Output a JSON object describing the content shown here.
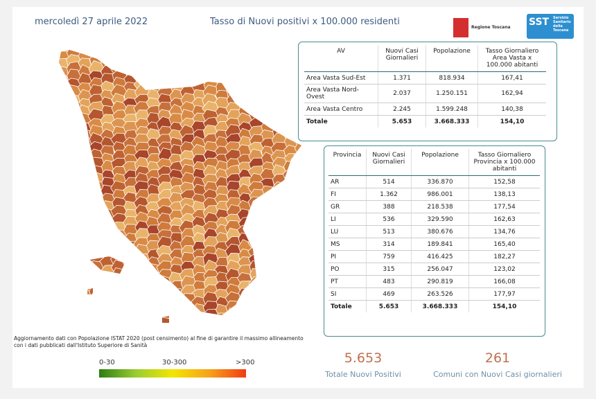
{
  "header": {
    "date": "mercoledì 27 aprile 2022",
    "title": "Tasso di Nuovi positivi x 100.000 residenti",
    "logo_regione": "Regione Toscana",
    "logo_sst": "SST",
    "logo_sst_text": "Servizio Sanitario della Toscana"
  },
  "table_av": {
    "columns": [
      "AV",
      "Nuovi Casi Giornalieri",
      "Popolazione",
      "Tasso Giornaliero Area Vasta x 100.000 abitanti"
    ],
    "rows": [
      [
        "Area Vasta Sud-Est",
        "1.371",
        "818.934",
        "167,41"
      ],
      [
        "Area Vasta Nord-Ovest",
        "2.037",
        "1.250.151",
        "162,94"
      ],
      [
        "Area Vasta Centro",
        "2.245",
        "1.599.248",
        "140,38"
      ]
    ],
    "total": [
      "Totale",
      "5.653",
      "3.668.333",
      "154,10"
    ]
  },
  "table_province": {
    "columns": [
      "Provincia",
      "Nuovi Casi Giornalieri",
      "Popolazione",
      "Tasso Giornaliero Provincia x 100.000 abitanti"
    ],
    "rows": [
      [
        "AR",
        "514",
        "336.870",
        "152,58"
      ],
      [
        "FI",
        "1.362",
        "986.001",
        "138,13"
      ],
      [
        "GR",
        "388",
        "218.538",
        "177,54"
      ],
      [
        "LI",
        "536",
        "329.590",
        "162,63"
      ],
      [
        "LU",
        "513",
        "380.676",
        "134,76"
      ],
      [
        "MS",
        "314",
        "189.841",
        "165,40"
      ],
      [
        "PI",
        "759",
        "416.425",
        "182,27"
      ],
      [
        "PO",
        "315",
        "256.047",
        "123,02"
      ],
      [
        "PT",
        "483",
        "290.819",
        "166,08"
      ],
      [
        "SI",
        "469",
        "263.526",
        "177,97"
      ]
    ],
    "total": [
      "Totale",
      "5.653",
      "3.668.333",
      "154,10"
    ]
  },
  "note": [
    "Aggiornamento dati con Popolazione ISTAT 2020 (post censimento) al fine di garantire il massimo allineamento",
    "con i dati pubblicati dall'Istituto Superiore di Sanità"
  ],
  "legend": {
    "labels": [
      "0-30",
      "30-300",
      ">300"
    ]
  },
  "kpis": [
    {
      "value": "5.653",
      "label": "Totale Nuovi Positivi"
    },
    {
      "value": "261",
      "label": "Comuni con Nuovi Casi giornalieri"
    }
  ]
}
